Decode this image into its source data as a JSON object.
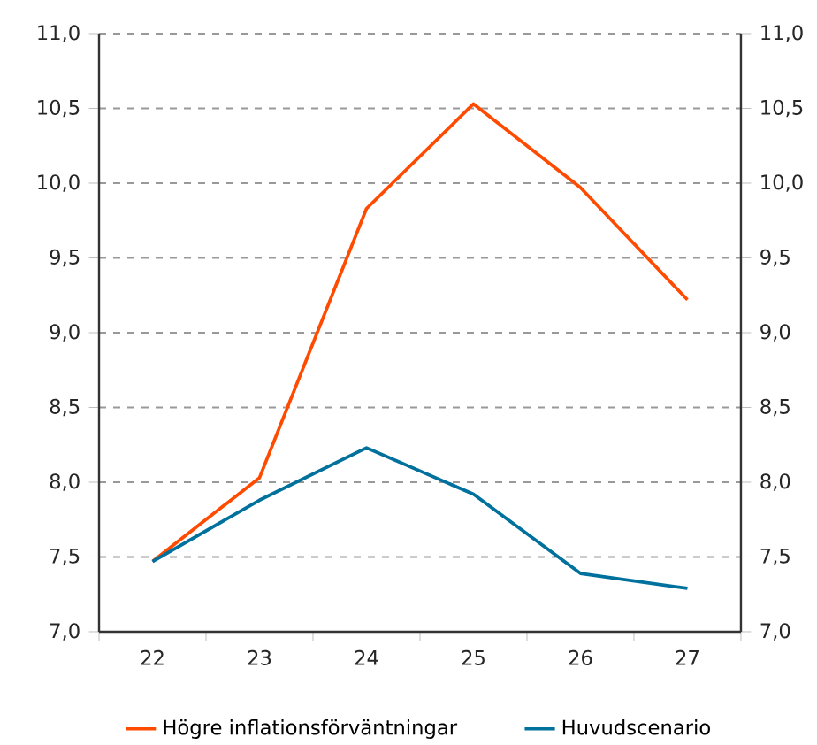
{
  "chart_data": {
    "type": "line",
    "categories": [
      "22",
      "23",
      "24",
      "25",
      "26",
      "27"
    ],
    "series": [
      {
        "name": "Högre inflationsförväntningar",
        "color": "#ff4b00",
        "values": [
          7.47,
          8.03,
          9.83,
          10.53,
          9.97,
          9.22
        ]
      },
      {
        "name": "Huvudscenario",
        "color": "#00709c",
        "values": [
          7.47,
          7.88,
          8.23,
          7.92,
          7.39,
          7.29
        ]
      }
    ],
    "ylim": [
      7,
      11
    ],
    "yticks": [
      {
        "value": 7,
        "label": "7,0"
      },
      {
        "value": 7.5,
        "label": "7,5"
      },
      {
        "value": 8,
        "label": "8,0"
      },
      {
        "value": 8.5,
        "label": "8,5"
      },
      {
        "value": 9,
        "label": "9,0"
      },
      {
        "value": 9.5,
        "label": "9,5"
      },
      {
        "value": 10,
        "label": "10,0"
      },
      {
        "value": 10.5,
        "label": "10,5"
      },
      {
        "value": 11,
        "label": "11,0"
      }
    ],
    "y2lim": [
      7,
      11
    ],
    "y2ticks": [
      {
        "value": 7,
        "label": "7,0"
      },
      {
        "value": 7.5,
        "label": "7,5"
      },
      {
        "value": 8,
        "label": "8,0"
      },
      {
        "value": 8.5,
        "label": "8,5"
      },
      {
        "value": 9,
        "label": "9,0"
      },
      {
        "value": 9.5,
        "label": "9,5"
      },
      {
        "value": 10,
        "label": "10,0"
      },
      {
        "value": 10.5,
        "label": "10,5"
      },
      {
        "value": 11,
        "label": "11,0"
      }
    ],
    "grid": "y",
    "legend": "bottom",
    "marker": "none",
    "line_style": "solid"
  }
}
